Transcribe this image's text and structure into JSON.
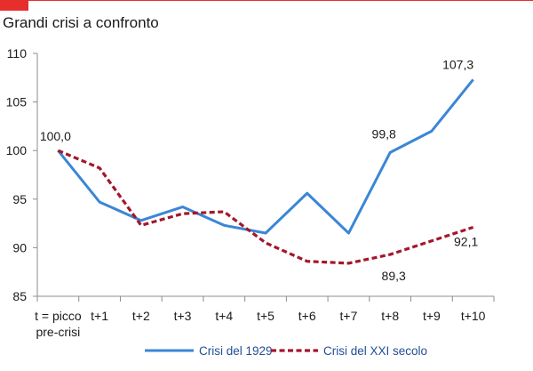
{
  "header": {
    "title": "Grandi crisi a confronto"
  },
  "colors": {
    "accent": "#e62e2d",
    "series_1929": "#3b86d6",
    "series_xxi": "#a3172a",
    "legend_text": "#1f4e96"
  },
  "chart_data": {
    "type": "line",
    "title": "Grandi crisi a confronto",
    "xlabel": "",
    "ylabel": "",
    "categories": [
      "t = picco\npre-crisi",
      "t+1",
      "t+2",
      "t+3",
      "t+4",
      "t+5",
      "t+6",
      "t+7",
      "t+8",
      "t+9",
      "t+10"
    ],
    "ylim": [
      85,
      110
    ],
    "yticks": [
      85,
      90,
      95,
      100,
      105,
      110
    ],
    "grid": false,
    "legend_position": "bottom",
    "series": [
      {
        "name": "Crisi del 1929",
        "style": "solid",
        "values": [
          100.0,
          94.7,
          92.8,
          94.2,
          92.3,
          91.5,
          95.6,
          91.5,
          99.8,
          102.0,
          107.3
        ]
      },
      {
        "name": "Crisi del XXI secolo",
        "style": "dashed",
        "values": [
          100.0,
          98.2,
          92.3,
          93.5,
          93.7,
          90.5,
          88.6,
          88.4,
          89.3,
          90.7,
          92.1
        ]
      }
    ],
    "data_labels": [
      {
        "series": 0,
        "index": 0,
        "text": "100,0"
      },
      {
        "series": 0,
        "index": 8,
        "text": "99,8"
      },
      {
        "series": 0,
        "index": 10,
        "text": "107,3"
      },
      {
        "series": 1,
        "index": 8,
        "text": "89,3"
      },
      {
        "series": 1,
        "index": 10,
        "text": "92,1"
      }
    ]
  }
}
